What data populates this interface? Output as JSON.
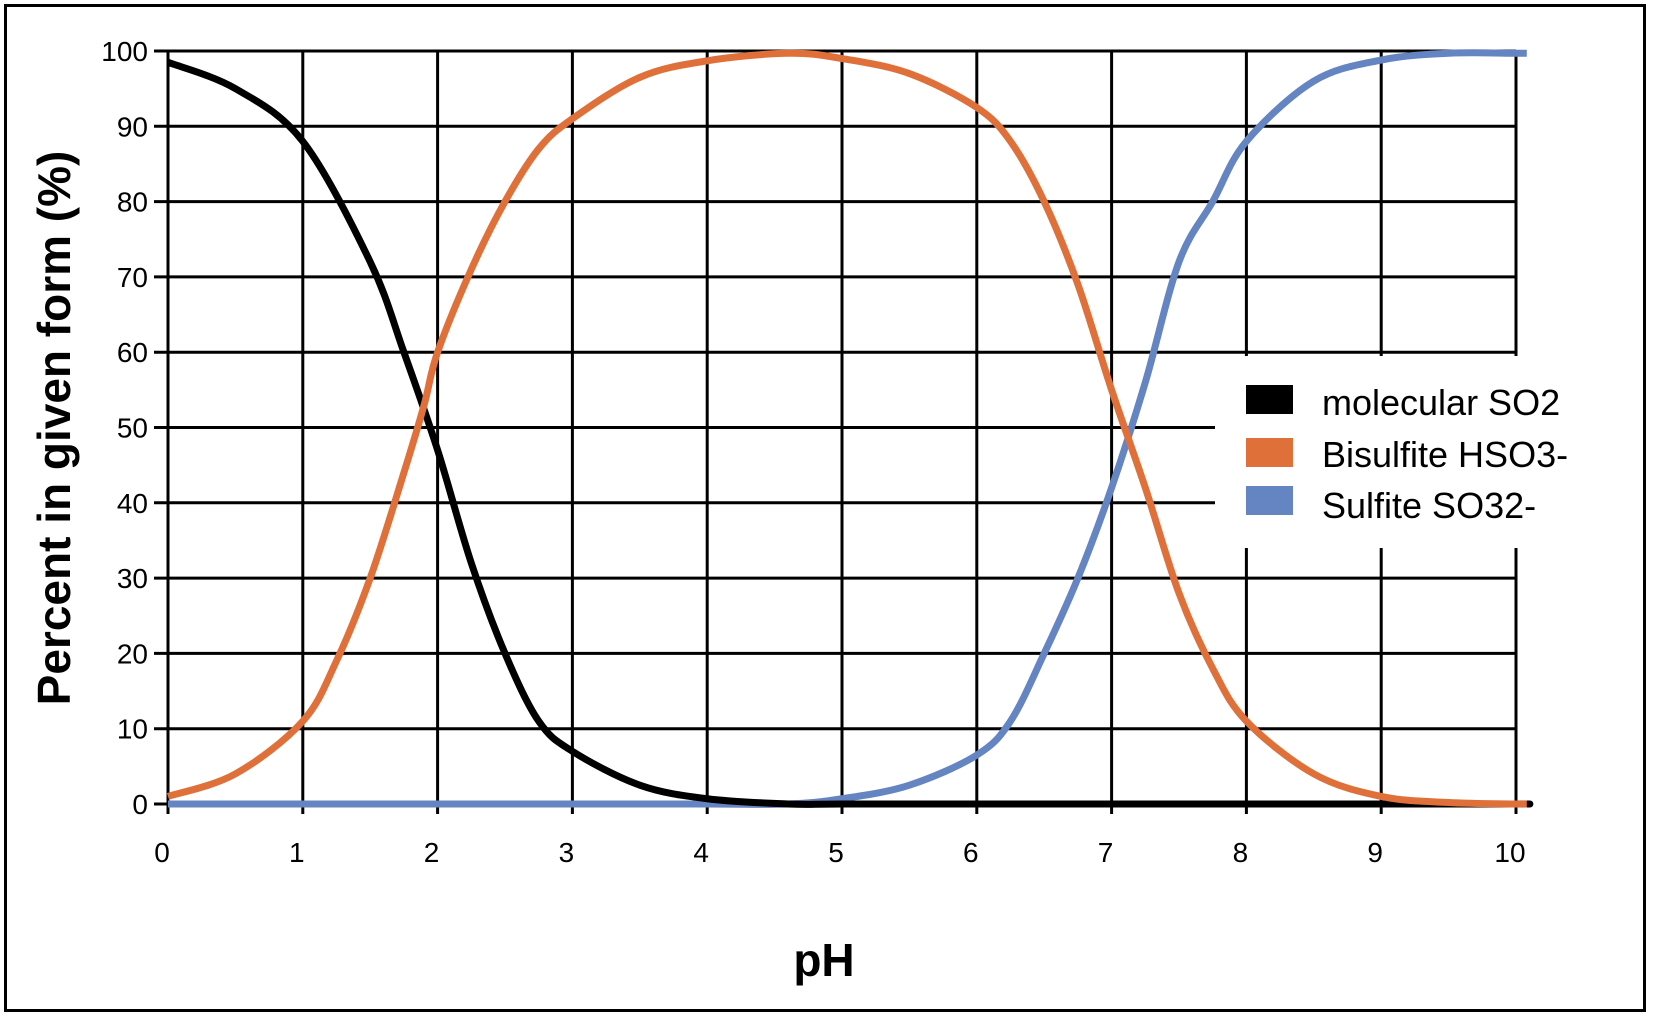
{
  "chart_data": {
    "type": "line",
    "title": "",
    "xlabel": "pH",
    "ylabel": "Percent in given form (%)",
    "xlim": [
      0,
      10
    ],
    "ylim": [
      0,
      100
    ],
    "x_ticks": [
      "0",
      "1",
      "2",
      "3",
      "4",
      "5",
      "6",
      "7",
      "8",
      "9",
      "10"
    ],
    "y_ticks": [
      "0",
      "10",
      "20",
      "30",
      "40",
      "50",
      "60",
      "70",
      "80",
      "90",
      "100"
    ],
    "grid": true,
    "legend_position": "right-center",
    "series": [
      {
        "name": "molecular SO2",
        "color": "#000000",
        "x": [
          0,
          0.5,
          1,
          1.5,
          1.75,
          2,
          2.25,
          2.5,
          2.75,
          3,
          3.5,
          4,
          4.6,
          5,
          6,
          7,
          8,
          9,
          10
        ],
        "y": [
          98.5,
          95,
          88,
          72,
          60,
          47,
          32,
          20,
          11,
          7,
          2.5,
          0.7,
          0,
          0,
          0,
          0,
          0,
          0,
          0
        ]
      },
      {
        "name": "Bisulfite HSO3-",
        "color": "#E0703A",
        "x": [
          0,
          0.5,
          1,
          1.25,
          1.5,
          1.75,
          1.9,
          2,
          2.25,
          2.5,
          2.75,
          3,
          3.5,
          4,
          4.6,
          5,
          5.5,
          6,
          6.25,
          6.5,
          6.75,
          7,
          7.25,
          7.5,
          7.75,
          8,
          8.5,
          9,
          9.5,
          10
        ],
        "y": [
          1,
          4,
          11,
          19,
          30,
          44,
          53,
          60,
          71,
          80,
          87,
          91,
          96.5,
          98.7,
          99.7,
          99,
          97,
          92.5,
          88,
          80,
          69,
          55,
          42,
          28,
          18,
          11,
          4,
          1,
          0.2,
          0
        ]
      },
      {
        "name": "Sulfite SO32-",
        "color": "#6584C2",
        "x": [
          0,
          1,
          2,
          3,
          4,
          4.6,
          5,
          5.5,
          6,
          6.25,
          6.5,
          6.75,
          7,
          7.25,
          7.5,
          7.75,
          8,
          8.5,
          9,
          9.5,
          10
        ],
        "y": [
          0,
          0,
          0,
          0,
          0,
          0,
          0.7,
          2.5,
          6.5,
          11,
          20,
          30,
          42,
          56,
          72,
          80,
          88,
          96,
          98.8,
          99.7,
          99.7
        ]
      }
    ]
  },
  "legend": {
    "items": [
      {
        "label": "molecular SO2",
        "color": "#000000"
      },
      {
        "label": "Bisulfite HSO3-",
        "color": "#E0703A"
      },
      {
        "label": "Sulfite SO32-",
        "color": "#6584C2"
      }
    ]
  }
}
